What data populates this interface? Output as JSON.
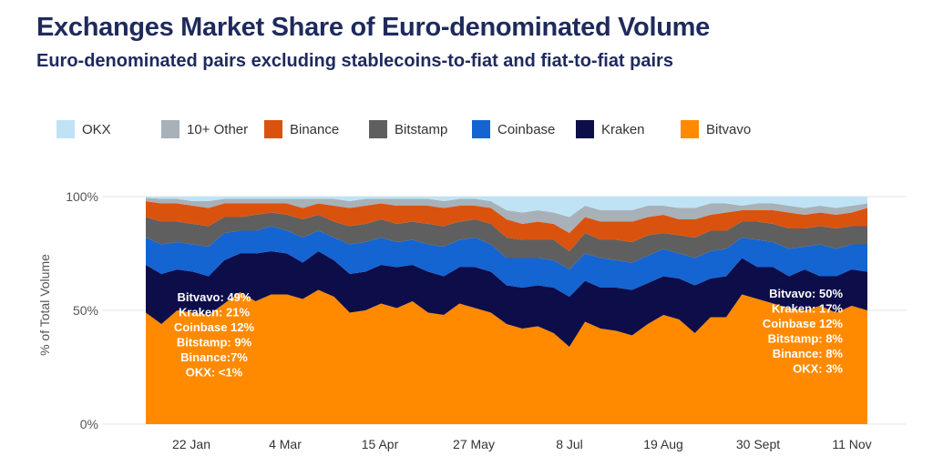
{
  "title": "Exchanges Market Share of Euro-denominated Volume",
  "subtitle": "Euro-denominated pairs excluding stablecoins-to-fiat and fiat-to-fiat pairs",
  "legend": [
    {
      "name": "OKX",
      "color": "#bfe3f5"
    },
    {
      "name": "10+ Other",
      "color": "#a8b0b8"
    },
    {
      "name": "Binance",
      "color": "#d9530f"
    },
    {
      "name": "Bitstamp",
      "color": "#5f5f5f"
    },
    {
      "name": "Coinbase",
      "color": "#1464d2"
    },
    {
      "name": "Kraken",
      "color": "#0d0d4a"
    },
    {
      "name": "Bitvavo",
      "color": "#ff8a00"
    }
  ],
  "annotations": {
    "left": [
      "Bitvavo: 49%",
      "Kraken: 21%",
      "Coinbase 12%",
      "Bitstamp: 9%",
      "Binance:7%",
      "OKX: <1%"
    ],
    "right": [
      "Bitvavo: 50%",
      "Kraken: 17%",
      "Coinbase 12%",
      "Bitstamp: 8%",
      "Binance: 8%",
      "OKX: 3%"
    ]
  },
  "chart_data": {
    "type": "area",
    "stacked": true,
    "ylabel": "% of Total Volume",
    "ylim": [
      0,
      100
    ],
    "yticks": [
      "0%",
      "50%",
      "100%"
    ],
    "xticks": [
      "22 Jan",
      "4 Mar",
      "15 Apr",
      "27 May",
      "8 Jul",
      "19 Aug",
      "30 Sept",
      "11 Nov"
    ],
    "x": [
      "2023-01-01",
      "2023-01-08",
      "2023-01-15",
      "2023-01-22",
      "2023-01-29",
      "2023-02-05",
      "2023-02-12",
      "2023-02-19",
      "2023-02-26",
      "2023-03-05",
      "2023-03-12",
      "2023-03-19",
      "2023-03-26",
      "2023-04-02",
      "2023-04-09",
      "2023-04-16",
      "2023-04-23",
      "2023-04-30",
      "2023-05-07",
      "2023-05-14",
      "2023-05-21",
      "2023-05-28",
      "2023-06-04",
      "2023-06-11",
      "2023-06-18",
      "2023-06-25",
      "2023-07-02",
      "2023-07-09",
      "2023-07-16",
      "2023-07-23",
      "2023-07-30",
      "2023-08-06",
      "2023-08-13",
      "2023-08-20",
      "2023-08-27",
      "2023-09-03",
      "2023-09-10",
      "2023-09-17",
      "2023-09-24",
      "2023-10-01",
      "2023-10-08",
      "2023-10-15",
      "2023-10-22",
      "2023-10-29",
      "2023-11-05",
      "2023-11-12",
      "2023-11-19"
    ],
    "series": [
      {
        "name": "Bitvavo",
        "values": [
          49,
          44,
          50,
          49,
          48,
          53,
          58,
          54,
          57,
          57,
          55,
          59,
          56,
          49,
          50,
          53,
          51,
          54,
          49,
          48,
          53,
          51,
          49,
          44,
          42,
          43,
          40,
          34,
          45,
          42,
          41,
          39,
          44,
          48,
          46,
          40,
          47,
          47,
          57,
          55,
          53,
          51,
          50,
          52,
          49,
          52,
          50
        ]
      },
      {
        "name": "Kraken",
        "values": [
          21,
          22,
          18,
          18,
          17,
          19,
          17,
          21,
          19,
          18,
          16,
          17,
          16,
          17,
          17,
          17,
          18,
          16,
          18,
          17,
          16,
          18,
          18,
          17,
          18,
          18,
          20,
          22,
          18,
          18,
          19,
          20,
          18,
          17,
          18,
          21,
          17,
          18,
          16,
          14,
          16,
          14,
          18,
          13,
          16,
          16,
          17
        ]
      },
      {
        "name": "Coinbase",
        "values": [
          12,
          13,
          12,
          12,
          13,
          12,
          10,
          10,
          11,
          10,
          11,
          9,
          10,
          13,
          13,
          12,
          11,
          11,
          12,
          13,
          12,
          13,
          12,
          12,
          13,
          12,
          12,
          12,
          12,
          13,
          12,
          12,
          12,
          12,
          11,
          12,
          12,
          12,
          9,
          12,
          11,
          12,
          10,
          14,
          12,
          11,
          12
        ]
      },
      {
        "name": "Bitstamp",
        "values": [
          9,
          10,
          9,
          9,
          9,
          7,
          6,
          7,
          6,
          7,
          8,
          7,
          7,
          8,
          8,
          8,
          8,
          8,
          9,
          9,
          8,
          8,
          9,
          9,
          8,
          8,
          9,
          8,
          9,
          8,
          9,
          9,
          9,
          7,
          8,
          9,
          9,
          8,
          7,
          8,
          8,
          9,
          8,
          8,
          9,
          8,
          8
        ]
      },
      {
        "name": "Binance",
        "values": [
          7,
          8,
          8,
          8,
          8,
          6,
          6,
          5,
          4,
          5,
          5,
          5,
          7,
          8,
          8,
          7,
          8,
          7,
          8,
          8,
          7,
          6,
          7,
          8,
          7,
          8,
          7,
          8,
          7,
          8,
          8,
          9,
          8,
          8,
          7,
          8,
          7,
          8,
          5,
          5,
          6,
          7,
          6,
          6,
          6,
          6,
          8
        ]
      },
      {
        "name": "10+ Other",
        "values": [
          1.5,
          2,
          2,
          2,
          3,
          2,
          2,
          2,
          2,
          2,
          4,
          2,
          3,
          3,
          3,
          2,
          3,
          3,
          3,
          3,
          3,
          3,
          3,
          4,
          5,
          5,
          5,
          7,
          5,
          5,
          5,
          5,
          5,
          4,
          5,
          5,
          5,
          4,
          2,
          3,
          3,
          3,
          3,
          3,
          3,
          3,
          2
        ]
      },
      {
        "name": "OKX",
        "values": [
          0.5,
          1,
          1,
          2,
          2,
          1,
          1,
          1,
          1,
          1,
          1,
          1,
          1,
          2,
          1,
          1,
          1,
          1,
          1,
          2,
          1,
          1,
          2,
          6,
          7,
          6,
          7,
          9,
          4,
          6,
          6,
          6,
          4,
          4,
          5,
          5,
          3,
          3,
          4,
          3,
          3,
          4,
          5,
          4,
          5,
          4,
          3
        ]
      }
    ]
  }
}
